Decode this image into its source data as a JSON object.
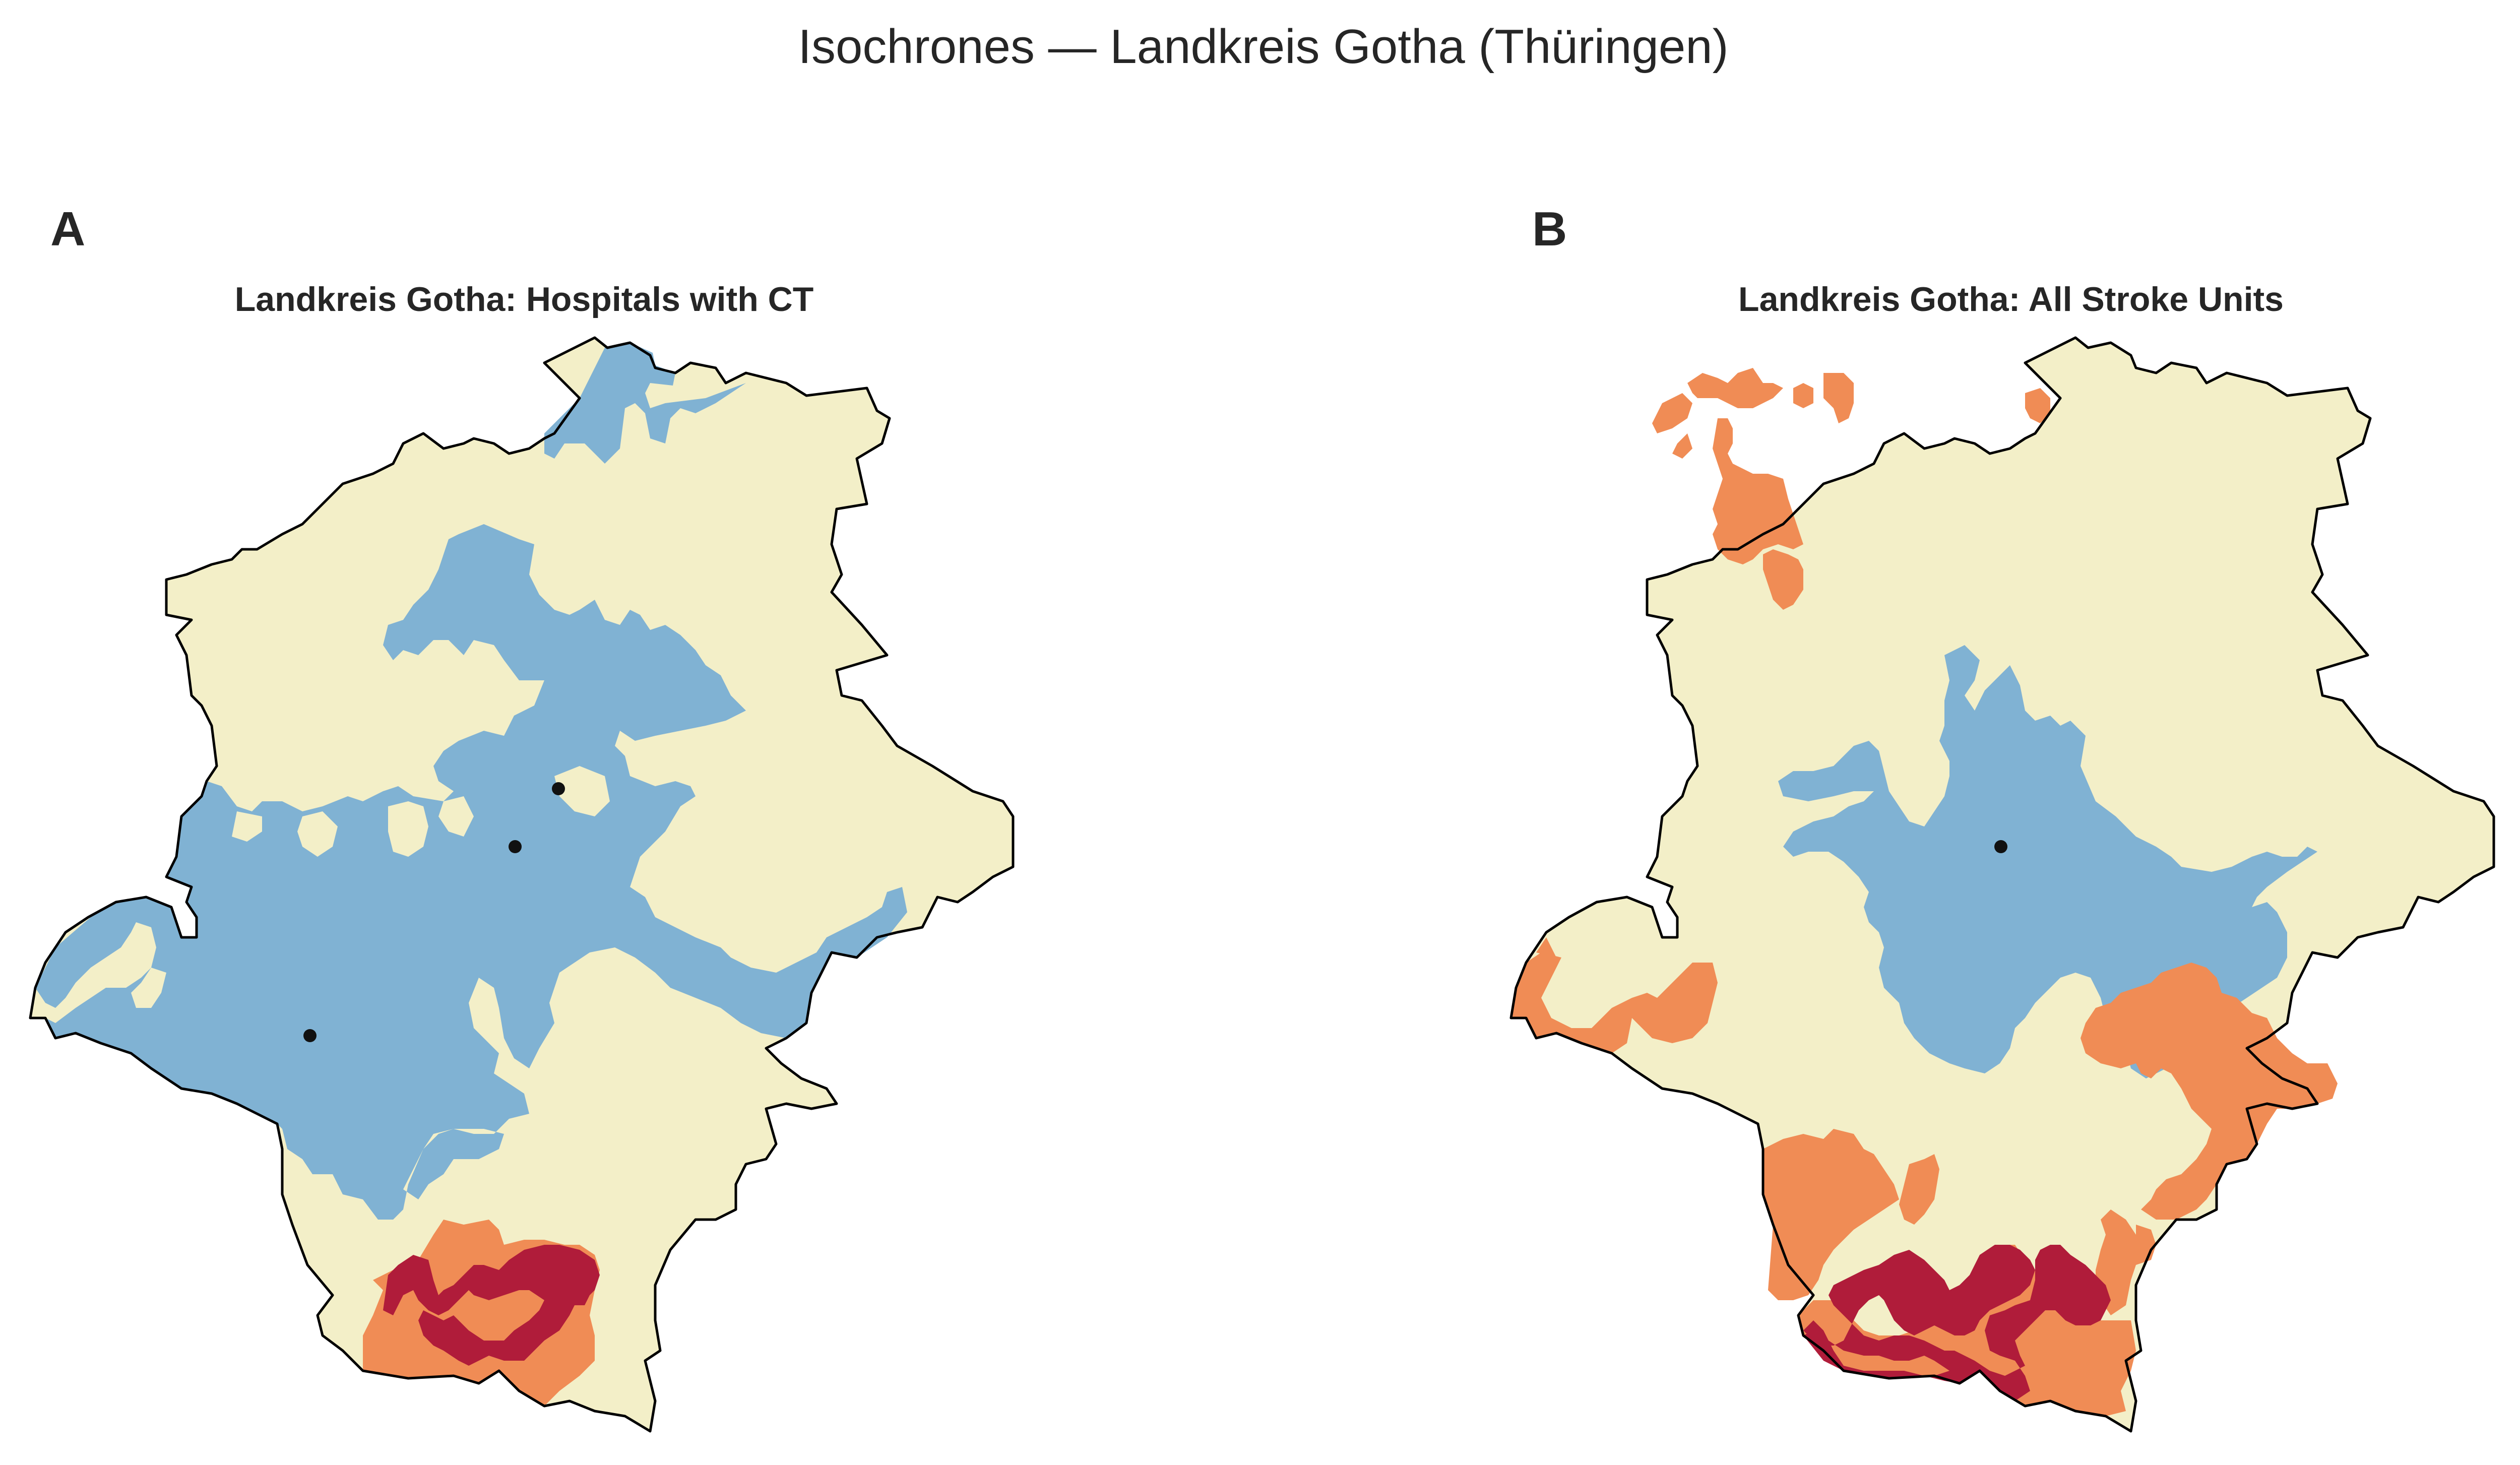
{
  "figure": {
    "title": "Isochrones — Landkreis Gotha (Thüringen)"
  },
  "colors": {
    "background": "#ffffff",
    "outline": "#000000",
    "zone_near": "#80b2d3",
    "zone_mid": "#f3efc8",
    "zone_far": "#f08c55",
    "zone_farthest": "#b01c3a",
    "facility_marker": "#111111"
  },
  "panels": [
    {
      "letter": "A",
      "title": "Landkreis Gotha: Hospitals with CT",
      "facility_count": 3
    },
    {
      "letter": "B",
      "title": "Landkreis Gotha: All Stroke Units",
      "facility_count": 1
    }
  ]
}
